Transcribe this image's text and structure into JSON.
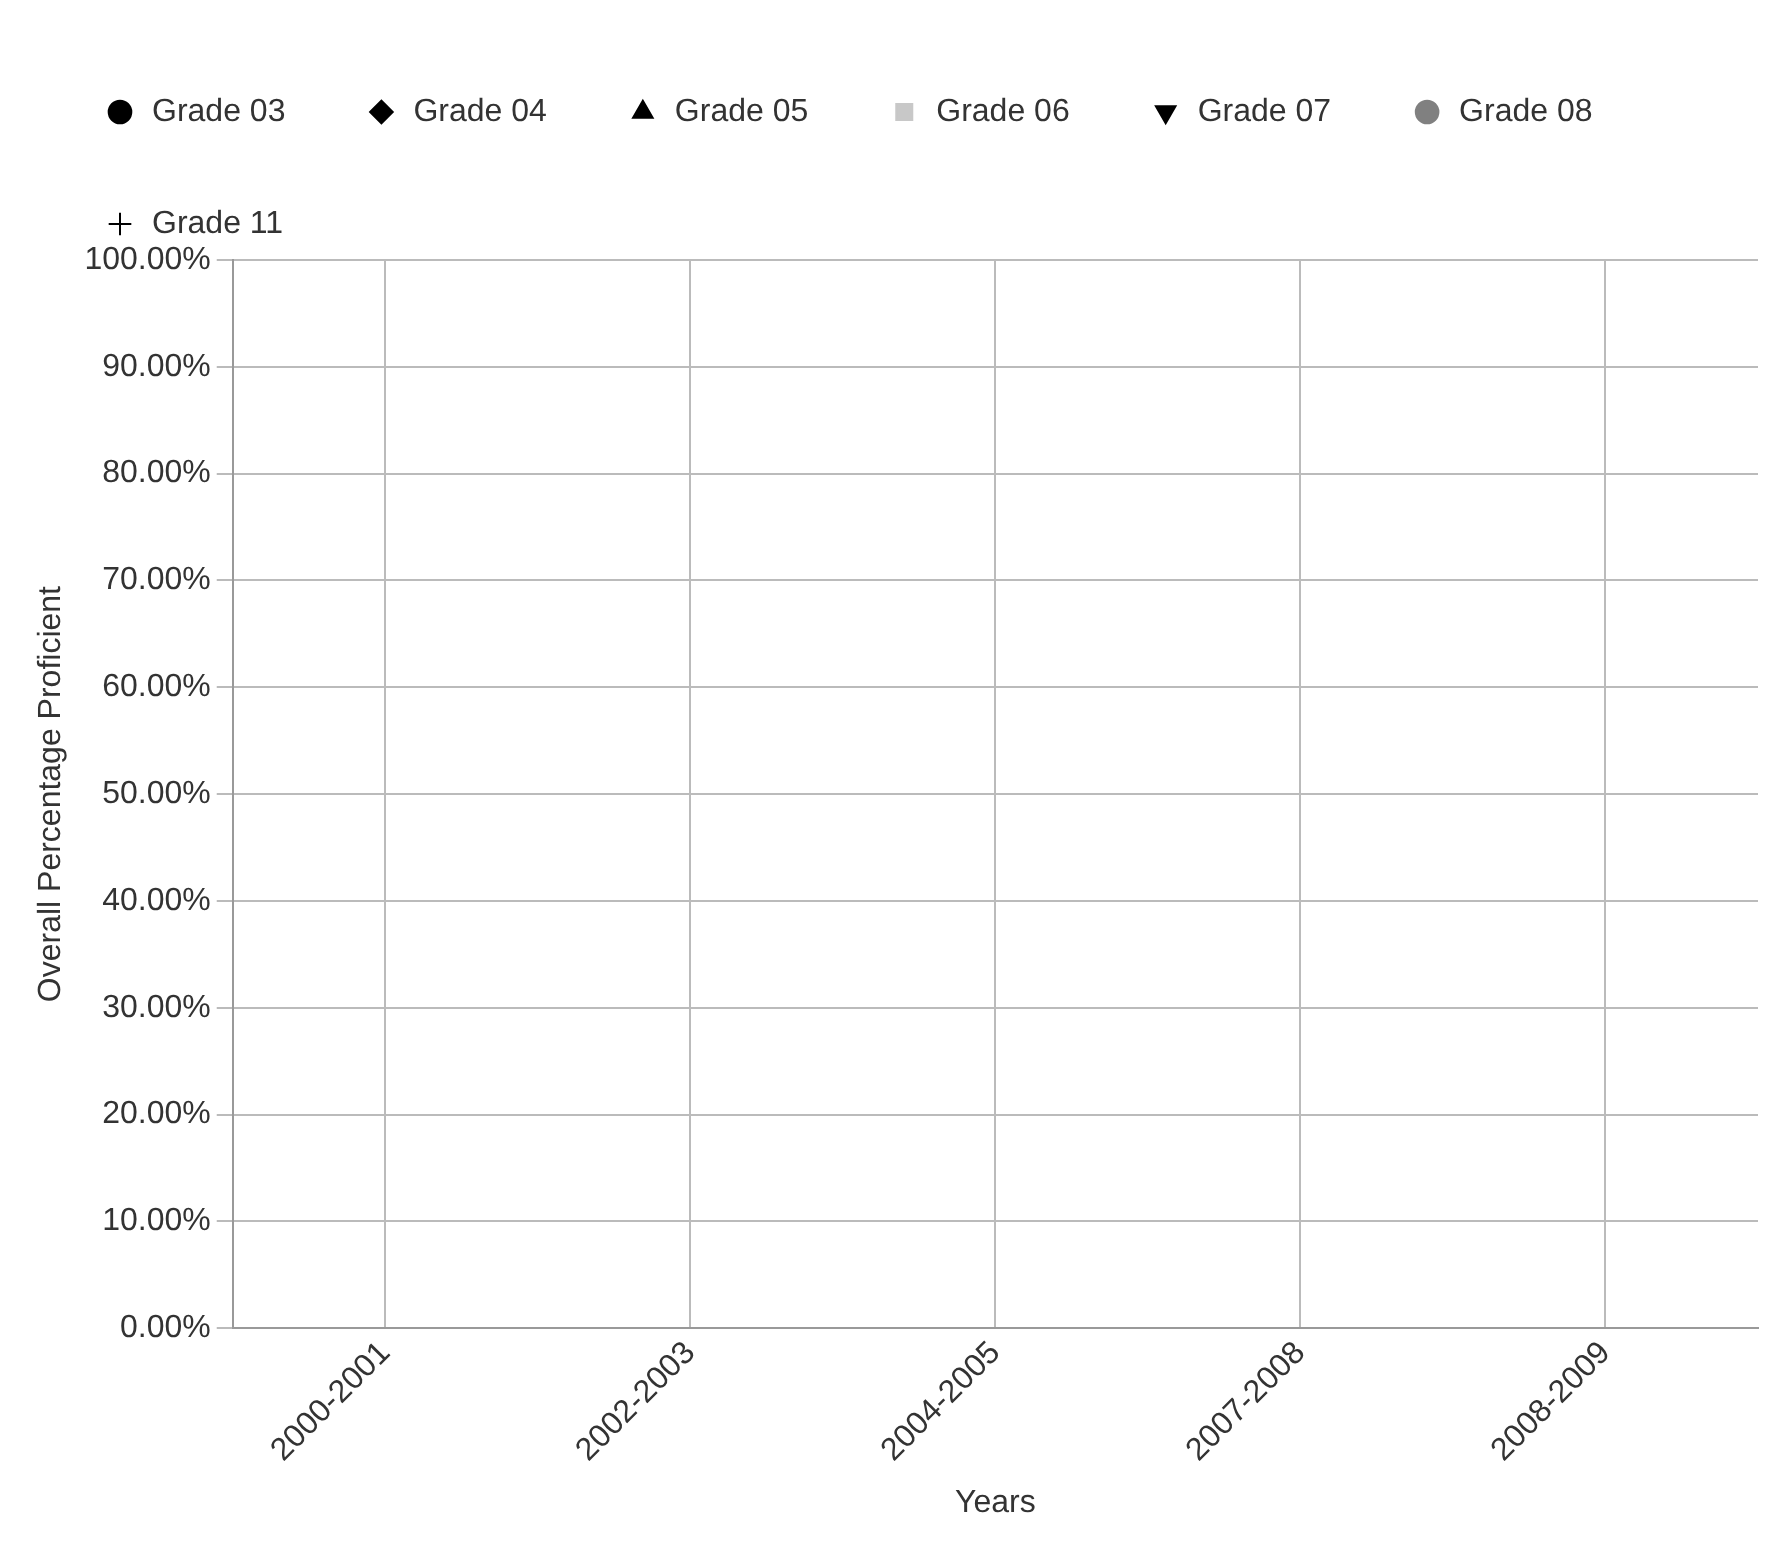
{
  "chart_data": {
    "type": "line",
    "xlabel": "Years",
    "ylabel": "Overall Percentage Proficient",
    "categories": [
      "2000-2001",
      "2002-2003",
      "2004-2005",
      "2007-2008",
      "2008-2009"
    ],
    "series": [
      {
        "name": "Grade 03",
        "color": "#000000",
        "marker": "circle",
        "values": [
          null,
          null,
          null,
          null,
          null
        ]
      },
      {
        "name": "Grade 04",
        "color": "#000000",
        "marker": "diamond",
        "values": [
          null,
          null,
          null,
          null,
          null
        ]
      },
      {
        "name": "Grade 05",
        "color": "#000000",
        "marker": "triangle",
        "values": [
          null,
          null,
          null,
          null,
          null
        ]
      },
      {
        "name": "Grade 06",
        "color": "#c8c8c8",
        "marker": "square",
        "values": [
          null,
          null,
          null,
          null,
          null
        ]
      },
      {
        "name": "Grade 07",
        "color": "#000000",
        "marker": "triangle-down",
        "values": [
          null,
          null,
          null,
          null,
          null
        ]
      },
      {
        "name": "Grade 08",
        "color": "#808080",
        "marker": "circle",
        "values": [
          null,
          null,
          null,
          null,
          null
        ]
      },
      {
        "name": "Grade 11",
        "color": "#000000",
        "marker": "cross",
        "values": [
          null,
          null,
          null,
          null,
          null
        ]
      }
    ],
    "ylim": [
      0,
      1
    ],
    "yticks": [
      {
        "value": 0,
        "label": "0.00%"
      },
      {
        "value": 0.1,
        "label": "10.00%"
      },
      {
        "value": 0.2,
        "label": "20.00%"
      },
      {
        "value": 0.3,
        "label": "30.00%"
      },
      {
        "value": 0.4,
        "label": "40.00%"
      },
      {
        "value": 0.5,
        "label": "50.00%"
      },
      {
        "value": 0.6,
        "label": "60.00%"
      },
      {
        "value": 0.7,
        "label": "70.00%"
      },
      {
        "value": 0.8,
        "label": "80.00%"
      },
      {
        "value": 0.9,
        "label": "90.00%"
      },
      {
        "value": 1,
        "label": "100.00%"
      }
    ],
    "grid": true,
    "legend": "top"
  }
}
